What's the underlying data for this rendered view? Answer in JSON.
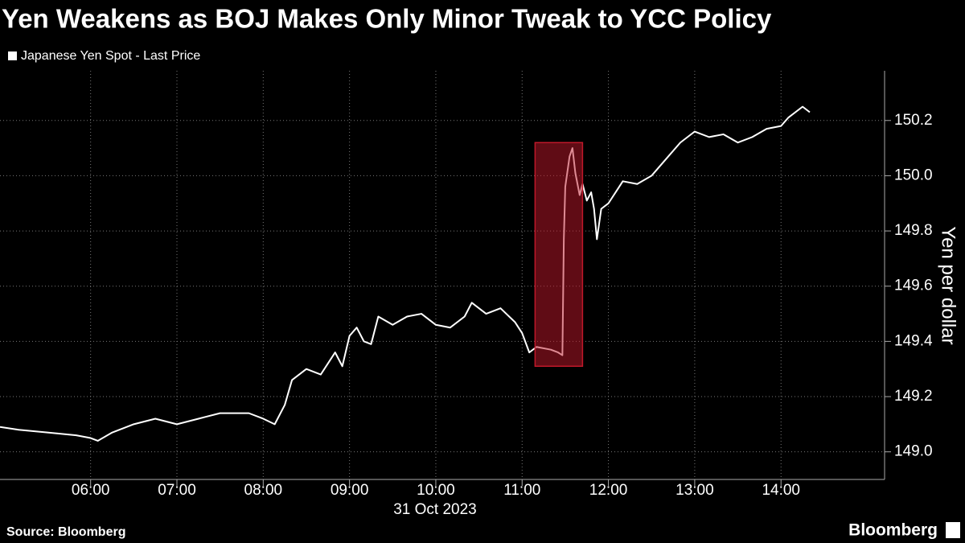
{
  "chart_data": {
    "type": "line",
    "title": "Yen Weakens as BOJ Makes Only Minor Tweak to YCC Policy",
    "y_label": "Yen per dollar",
    "x_label": "31 Oct 2023",
    "source": "Source: Bloomberg",
    "brand": "Bloomberg",
    "xlim": [
      "04:57",
      "15:12"
    ],
    "xticks": [
      "06:00",
      "07:00",
      "08:00",
      "09:00",
      "10:00",
      "11:00",
      "12:00",
      "13:00",
      "14:00"
    ],
    "ylim": [
      148.9,
      150.38
    ],
    "yticks": [
      {
        "value": 149,
        "label": "149.0"
      },
      {
        "value": 149.2,
        "label": "149.2"
      },
      {
        "value": 149.4,
        "label": "149.4"
      },
      {
        "value": 149.6,
        "label": "149.6"
      },
      {
        "value": 149.8,
        "label": "149.8"
      },
      {
        "value": 150,
        "label": "150.0"
      },
      {
        "value": 150.2,
        "label": "150.2"
      }
    ],
    "grid": true,
    "highlight": {
      "x": [
        "11:09",
        "11:42"
      ],
      "y": [
        149.31,
        150.12
      ],
      "color": "#c0182a"
    },
    "series": [
      {
        "name": "Japanese Yen Spot - Last Price",
        "color": "#ffffff",
        "x": [
          "04:57",
          "05:10",
          "05:30",
          "05:50",
          "06:00",
          "06:05",
          "06:15",
          "06:30",
          "06:45",
          "07:00",
          "07:15",
          "07:30",
          "07:50",
          "08:00",
          "08:08",
          "08:15",
          "08:20",
          "08:30",
          "08:40",
          "08:50",
          "08:55",
          "09:00",
          "09:05",
          "09:10",
          "09:15",
          "09:20",
          "09:30",
          "09:40",
          "09:50",
          "10:00",
          "10:10",
          "10:20",
          "10:25",
          "10:35",
          "10:45",
          "10:55",
          "11:00",
          "11:05",
          "11:10",
          "11:20",
          "11:25",
          "11:28",
          "11:29",
          "11:30",
          "11:33",
          "11:35",
          "11:37",
          "11:40",
          "11:42",
          "11:45",
          "11:48",
          "11:50",
          "11:52",
          "11:55",
          "12:00",
          "12:05",
          "12:10",
          "12:20",
          "12:30",
          "12:40",
          "12:50",
          "13:00",
          "13:10",
          "13:20",
          "13:30",
          "13:40",
          "13:50",
          "14:00",
          "14:05",
          "14:15",
          "14:20"
        ],
        "values": [
          149.09,
          149.08,
          149.07,
          149.06,
          149.05,
          149.04,
          149.07,
          149.1,
          149.12,
          149.1,
          149.12,
          149.14,
          149.14,
          149.12,
          149.1,
          149.17,
          149.26,
          149.3,
          149.28,
          149.36,
          149.31,
          149.42,
          149.45,
          149.4,
          149.39,
          149.49,
          149.46,
          149.49,
          149.5,
          149.46,
          149.45,
          149.49,
          149.54,
          149.5,
          149.52,
          149.47,
          149.43,
          149.36,
          149.38,
          149.37,
          149.36,
          149.35,
          149.77,
          149.96,
          150.07,
          150.1,
          150.01,
          149.93,
          149.97,
          149.91,
          149.94,
          149.88,
          149.77,
          149.88,
          149.9,
          149.94,
          149.98,
          149.97,
          150,
          150.06,
          150.12,
          150.16,
          150.14,
          150.15,
          150.12,
          150.14,
          150.17,
          150.18,
          150.21,
          150.25,
          150.23
        ]
      }
    ]
  }
}
